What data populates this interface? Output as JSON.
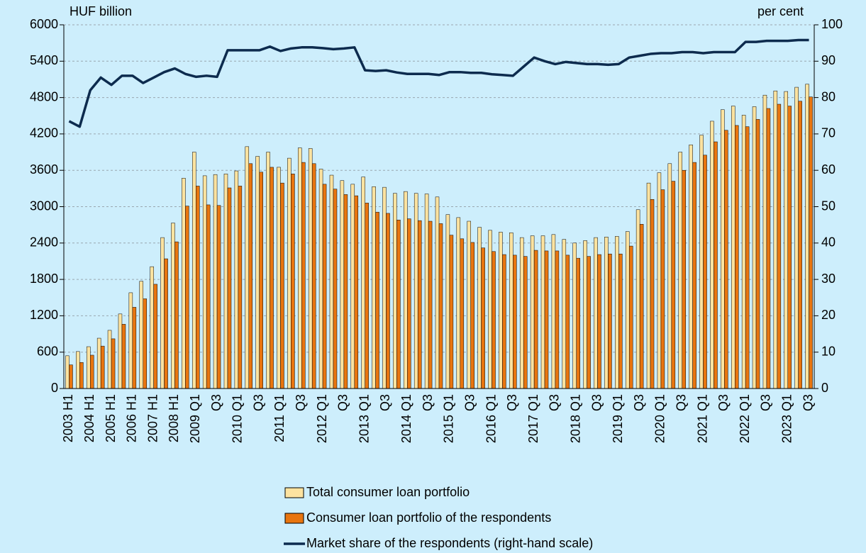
{
  "chart_data": {
    "type": "bar",
    "y_label": "HUF billion",
    "y2_label": "per cent",
    "categories": [
      "2003 H1",
      null,
      "2004 H1",
      null,
      "2005 H1",
      null,
      "2006 H1",
      null,
      "2007 H1",
      null,
      "2008 H1",
      null,
      "2009 Q1",
      null,
      "Q3",
      null,
      "2010 Q1",
      null,
      "Q3",
      null,
      "2011 Q1",
      null,
      "Q3",
      null,
      "2012 Q1",
      null,
      "Q3",
      null,
      "2013 Q1",
      null,
      "Q3",
      null,
      "2014 Q1",
      null,
      "Q3",
      null,
      "2015 Q1",
      null,
      "Q3",
      null,
      "2016 Q1",
      null,
      "Q3",
      null,
      "2017 Q1",
      null,
      "Q3",
      null,
      "2018 Q1",
      null,
      "Q3",
      null,
      "2019 Q1",
      null,
      "Q3",
      null,
      "2020 Q1",
      null,
      "Q3",
      null,
      "2021 Q1",
      null,
      "Q3",
      null,
      "2022 Q1",
      null,
      "Q3",
      null,
      "2023 Q1",
      null,
      "Q3"
    ],
    "series": [
      {
        "name": "Total consumer loan portfolio",
        "type": "bar",
        "color": "#fde3a0",
        "values": [
          540,
          610,
          690,
          830,
          960,
          1230,
          1580,
          1770,
          2010,
          2490,
          2730,
          3470,
          3900,
          3510,
          3530,
          3540,
          3590,
          3990,
          3830,
          3900,
          3650,
          3800,
          3970,
          3960,
          3620,
          3520,
          3430,
          3370,
          3490,
          3330,
          3320,
          3220,
          3250,
          3220,
          3210,
          3160,
          2870,
          2820,
          2760,
          2660,
          2610,
          2580,
          2570,
          2490,
          2520,
          2520,
          2540,
          2460,
          2400,
          2440,
          2490,
          2500,
          2510,
          2590,
          2950,
          3390,
          3560,
          3710,
          3900,
          4020,
          4180,
          4410,
          4600,
          4660,
          4510,
          4650,
          4840,
          4910,
          4900,
          4970,
          5020
        ]
      },
      {
        "name": "Consumer loan portfolio of the respondents",
        "type": "bar",
        "color": "#e8750f",
        "values": [
          390,
          430,
          550,
          700,
          820,
          1060,
          1340,
          1480,
          1720,
          2140,
          2420,
          3010,
          3340,
          3030,
          3020,
          3310,
          3340,
          3710,
          3570,
          3650,
          3390,
          3540,
          3730,
          3710,
          3370,
          3290,
          3200,
          3180,
          3060,
          2910,
          2890,
          2780,
          2800,
          2770,
          2760,
          2720,
          2530,
          2470,
          2410,
          2320,
          2260,
          2210,
          2200,
          2180,
          2280,
          2270,
          2270,
          2200,
          2150,
          2180,
          2210,
          2220,
          2220,
          2350,
          2710,
          3120,
          3280,
          3420,
          3600,
          3730,
          3850,
          4070,
          4260,
          4340,
          4320,
          4440,
          4620,
          4690,
          4660,
          4740,
          4810
        ]
      },
      {
        "name": "Market share of the respondents (right-hand scale)",
        "type": "line",
        "axis": "y2",
        "color": "#0d2b4e",
        "values": [
          73.5,
          72,
          82,
          85.5,
          83.5,
          86,
          86,
          84,
          85.5,
          87,
          88,
          86.5,
          85.7,
          86,
          85.7,
          93,
          93,
          93,
          93,
          94,
          92.8,
          93.5,
          93.8,
          93.8,
          93.6,
          93.3,
          93.5,
          93.8,
          87.5,
          87.3,
          87.5,
          86.9,
          86.5,
          86.5,
          86.5,
          86.2,
          87,
          87,
          86.8,
          86.8,
          86.4,
          86.2,
          86,
          88.5,
          91,
          90,
          89.2,
          89.8,
          89.5,
          89.2,
          89.2,
          89,
          89.2,
          91,
          91.5,
          92,
          92.2,
          92.2,
          92.5,
          92.5,
          92.2,
          92.5,
          92.5,
          92.5,
          95.3,
          95.3,
          95.6,
          95.6,
          95.6,
          95.8,
          95.8
        ]
      }
    ],
    "ylim": [
      0,
      6000
    ],
    "yticks": [
      0,
      600,
      1200,
      1800,
      2400,
      3000,
      3600,
      4200,
      4800,
      5400,
      6000
    ],
    "y2lim": [
      0,
      100
    ],
    "y2ticks": [
      0,
      10,
      20,
      30,
      40,
      50,
      60,
      70,
      80,
      90,
      100
    ],
    "grid": true,
    "legend": "bottom"
  }
}
